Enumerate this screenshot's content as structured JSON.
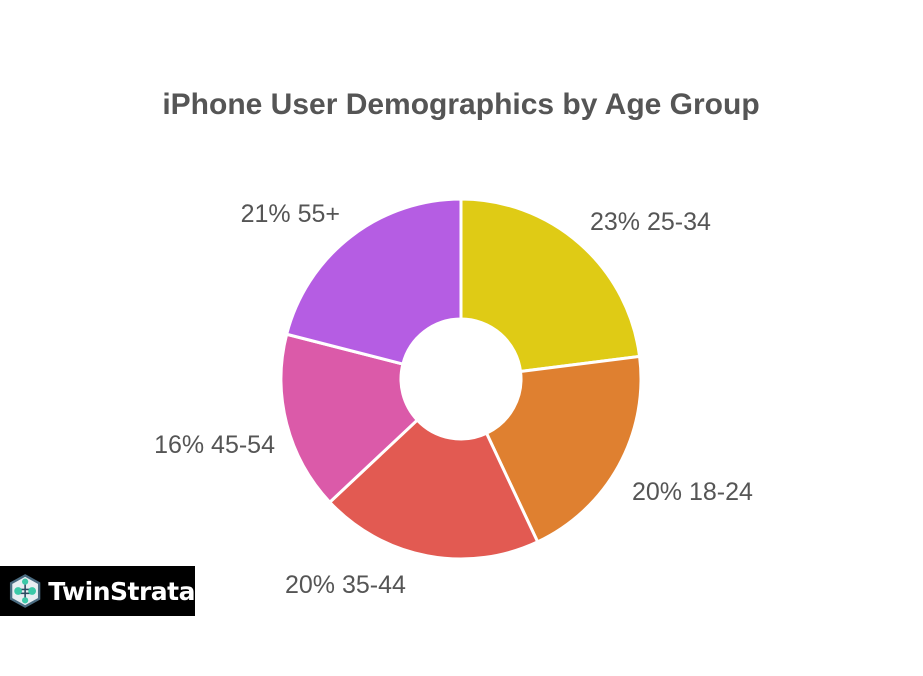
{
  "chart_data": {
    "type": "pie",
    "variant": "donut",
    "title": "iPhone User Demographics by Age Group",
    "slices": [
      {
        "label": "25-34",
        "value": 23,
        "display": "23% 25-34",
        "color": "#DFCB15"
      },
      {
        "label": "18-24",
        "value": 20,
        "display": "20% 18-24",
        "color": "#DF8030"
      },
      {
        "label": "35-44",
        "value": 20,
        "display": "20% 35-44",
        "color": "#E25A52"
      },
      {
        "label": "45-54",
        "value": 16,
        "display": "16% 45-54",
        "color": "#DB5AA9"
      },
      {
        "label": "55+",
        "value": 21,
        "display": "21% 55+",
        "color": "#B55DE3"
      }
    ],
    "start": "top",
    "direction": "clockwise"
  },
  "logo": {
    "text": "TwinStrata"
  }
}
